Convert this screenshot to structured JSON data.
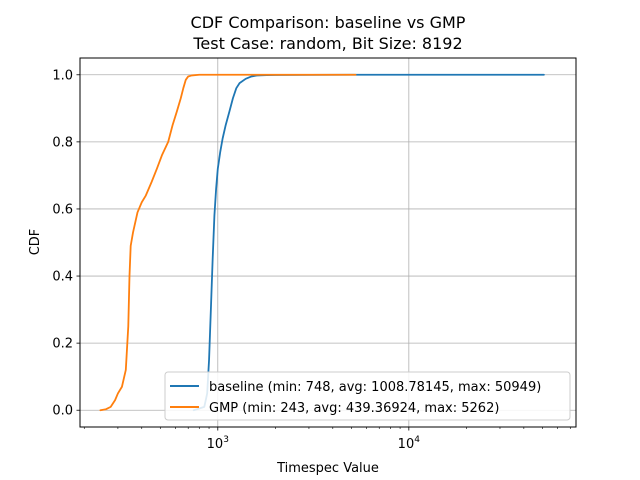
{
  "chart_data": {
    "type": "line",
    "title": "CDF Comparison: baseline vs GMP",
    "subtitle": "Test Case: random, Bit Size: 8192",
    "xlabel": "Timespec Value",
    "ylabel": "CDF",
    "xscale": "log",
    "xlim": [
      190,
      75000
    ],
    "ylim": [
      -0.05,
      1.05
    ],
    "x_tick_labels": [
      {
        "value": 1000,
        "base": "10",
        "exp": "3"
      },
      {
        "value": 10000,
        "base": "10",
        "exp": "4"
      }
    ],
    "y_ticks": [
      0.0,
      0.2,
      0.4,
      0.6,
      0.8,
      1.0
    ],
    "y_tick_labels": [
      "0.0",
      "0.2",
      "0.4",
      "0.6",
      "0.8",
      "1.0"
    ],
    "grid": true,
    "legend_position": "lower-right",
    "series": [
      {
        "name": "baseline (min: 748, avg: 1008.78145, max: 50949)",
        "color": "#1f77b4",
        "x": [
          748,
          850,
          880,
          900,
          920,
          940,
          960,
          980,
          1000,
          1030,
          1060,
          1100,
          1150,
          1200,
          1250,
          1300,
          1400,
          1500,
          1600,
          1800,
          2000,
          3000,
          5000,
          10000,
          20000,
          50949
        ],
        "y": [
          0.0,
          0.01,
          0.05,
          0.15,
          0.3,
          0.45,
          0.58,
          0.66,
          0.72,
          0.77,
          0.81,
          0.85,
          0.89,
          0.93,
          0.96,
          0.975,
          0.988,
          0.995,
          0.998,
          0.999,
          0.9995,
          0.9998,
          1.0,
          1.0,
          1.0,
          1.0
        ]
      },
      {
        "name": "GMP (min: 243, avg: 439.36924, max: 5262)",
        "color": "#ff7f0e",
        "x": [
          243,
          260,
          275,
          290,
          300,
          315,
          330,
          340,
          345,
          350,
          360,
          380,
          400,
          420,
          450,
          480,
          510,
          550,
          580,
          610,
          640,
          660,
          680,
          700,
          730,
          800,
          1000,
          2000,
          5262
        ],
        "y": [
          0.0,
          0.003,
          0.01,
          0.03,
          0.05,
          0.07,
          0.12,
          0.25,
          0.4,
          0.49,
          0.53,
          0.59,
          0.62,
          0.64,
          0.68,
          0.72,
          0.76,
          0.8,
          0.85,
          0.89,
          0.93,
          0.96,
          0.985,
          0.995,
          0.998,
          1.0,
          1.0,
          1.0,
          1.0
        ]
      }
    ]
  }
}
